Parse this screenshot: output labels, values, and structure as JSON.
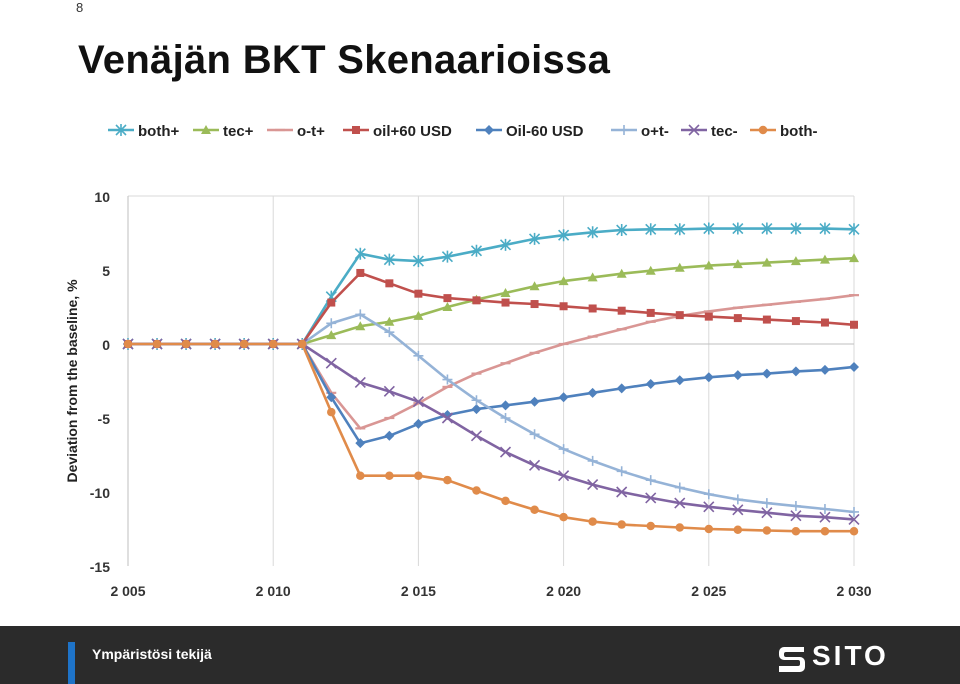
{
  "page": {
    "number": "8",
    "title": "Venäjän BKT Skenaarioissa"
  },
  "footer": {
    "tagline": "Ympäristösi tekijä",
    "brand": "SITO"
  },
  "chart_data": {
    "type": "line",
    "title": "",
    "xlabel": "",
    "ylabel": "Deviation from the baseline, %",
    "xlim": [
      2005,
      2030
    ],
    "ylim": [
      -15,
      10
    ],
    "x_ticks": [
      2005,
      2010,
      2015,
      2020,
      2025,
      2030
    ],
    "x_tick_labels": [
      "2 005",
      "2 010",
      "2 015",
      "2 020",
      "2 025",
      "2 030"
    ],
    "y_ticks": [
      10,
      5,
      0,
      -5,
      -10,
      -15
    ],
    "grid": "vertical",
    "legend_position": "top",
    "x": [
      2005,
      2006,
      2007,
      2008,
      2009,
      2010,
      2011,
      2012,
      2013,
      2014,
      2015,
      2016,
      2017,
      2018,
      2019,
      2020,
      2021,
      2022,
      2023,
      2024,
      2025,
      2026,
      2027,
      2028,
      2029,
      2030
    ],
    "series": [
      {
        "name": "both+",
        "color": "#4bacc6",
        "marker": "asterisk",
        "values": [
          0,
          0,
          0,
          0,
          0,
          0,
          0,
          3.2,
          6.1,
          5.7,
          5.6,
          5.9,
          6.3,
          6.7,
          7.1,
          7.35,
          7.55,
          7.7,
          7.75,
          7.75,
          7.8,
          7.8,
          7.8,
          7.8,
          7.8,
          7.75
        ]
      },
      {
        "name": "tec+",
        "color": "#9bbb59",
        "marker": "triangle",
        "values": [
          0,
          0,
          0,
          0,
          0,
          0,
          0,
          0.6,
          1.2,
          1.5,
          1.9,
          2.5,
          3.0,
          3.45,
          3.9,
          4.25,
          4.5,
          4.75,
          4.95,
          5.15,
          5.3,
          5.4,
          5.5,
          5.6,
          5.7,
          5.8
        ]
      },
      {
        "name": "o-t+",
        "color": "#d99694",
        "marker": "dash",
        "values": [
          0,
          0,
          0,
          0,
          0,
          0,
          0,
          -3.3,
          -5.7,
          -5.0,
          -4.0,
          -2.9,
          -2.0,
          -1.3,
          -0.6,
          0.0,
          0.5,
          1.0,
          1.5,
          1.9,
          2.2,
          2.45,
          2.65,
          2.85,
          3.05,
          3.3
        ]
      },
      {
        "name": "oil+60 USD",
        "color": "#c0504d",
        "marker": "square",
        "values": [
          0,
          0,
          0,
          0,
          0,
          0,
          0,
          2.8,
          4.8,
          4.1,
          3.4,
          3.1,
          2.95,
          2.8,
          2.7,
          2.55,
          2.4,
          2.25,
          2.1,
          1.95,
          1.85,
          1.75,
          1.65,
          1.55,
          1.45,
          1.3
        ]
      },
      {
        "name": "Oil-60 USD",
        "color": "#4f81bd",
        "marker": "diamond",
        "values": [
          0,
          0,
          0,
          0,
          0,
          0,
          0,
          -3.6,
          -6.7,
          -6.2,
          -5.4,
          -4.8,
          -4.4,
          -4.15,
          -3.9,
          -3.6,
          -3.3,
          -3.0,
          -2.7,
          -2.45,
          -2.25,
          -2.1,
          -2.0,
          -1.85,
          -1.75,
          -1.55
        ]
      },
      {
        "name": "o+t-",
        "color": "#95b3d7",
        "marker": "plus",
        "values": [
          0,
          0,
          0,
          0,
          0,
          0,
          0,
          1.4,
          2.0,
          0.8,
          -0.8,
          -2.4,
          -3.8,
          -5.0,
          -6.1,
          -7.1,
          -7.9,
          -8.6,
          -9.2,
          -9.7,
          -10.15,
          -10.5,
          -10.75,
          -10.95,
          -11.15,
          -11.35
        ]
      },
      {
        "name": "tec-",
        "color": "#8064a2",
        "marker": "x",
        "values": [
          0,
          0,
          0,
          0,
          0,
          0,
          0,
          -1.3,
          -2.6,
          -3.2,
          -3.9,
          -5.0,
          -6.2,
          -7.3,
          -8.2,
          -8.9,
          -9.5,
          -10.0,
          -10.4,
          -10.75,
          -11.0,
          -11.2,
          -11.4,
          -11.6,
          -11.7,
          -11.85
        ]
      },
      {
        "name": "both-",
        "color": "#e08b4a",
        "marker": "circle",
        "values": [
          0,
          0,
          0,
          0,
          0,
          0,
          0,
          -4.6,
          -8.9,
          -8.9,
          -8.9,
          -9.2,
          -9.9,
          -10.6,
          -11.2,
          -11.7,
          -12.0,
          -12.2,
          -12.3,
          -12.4,
          -12.5,
          -12.55,
          -12.6,
          -12.65,
          -12.65,
          -12.65
        ]
      }
    ]
  }
}
